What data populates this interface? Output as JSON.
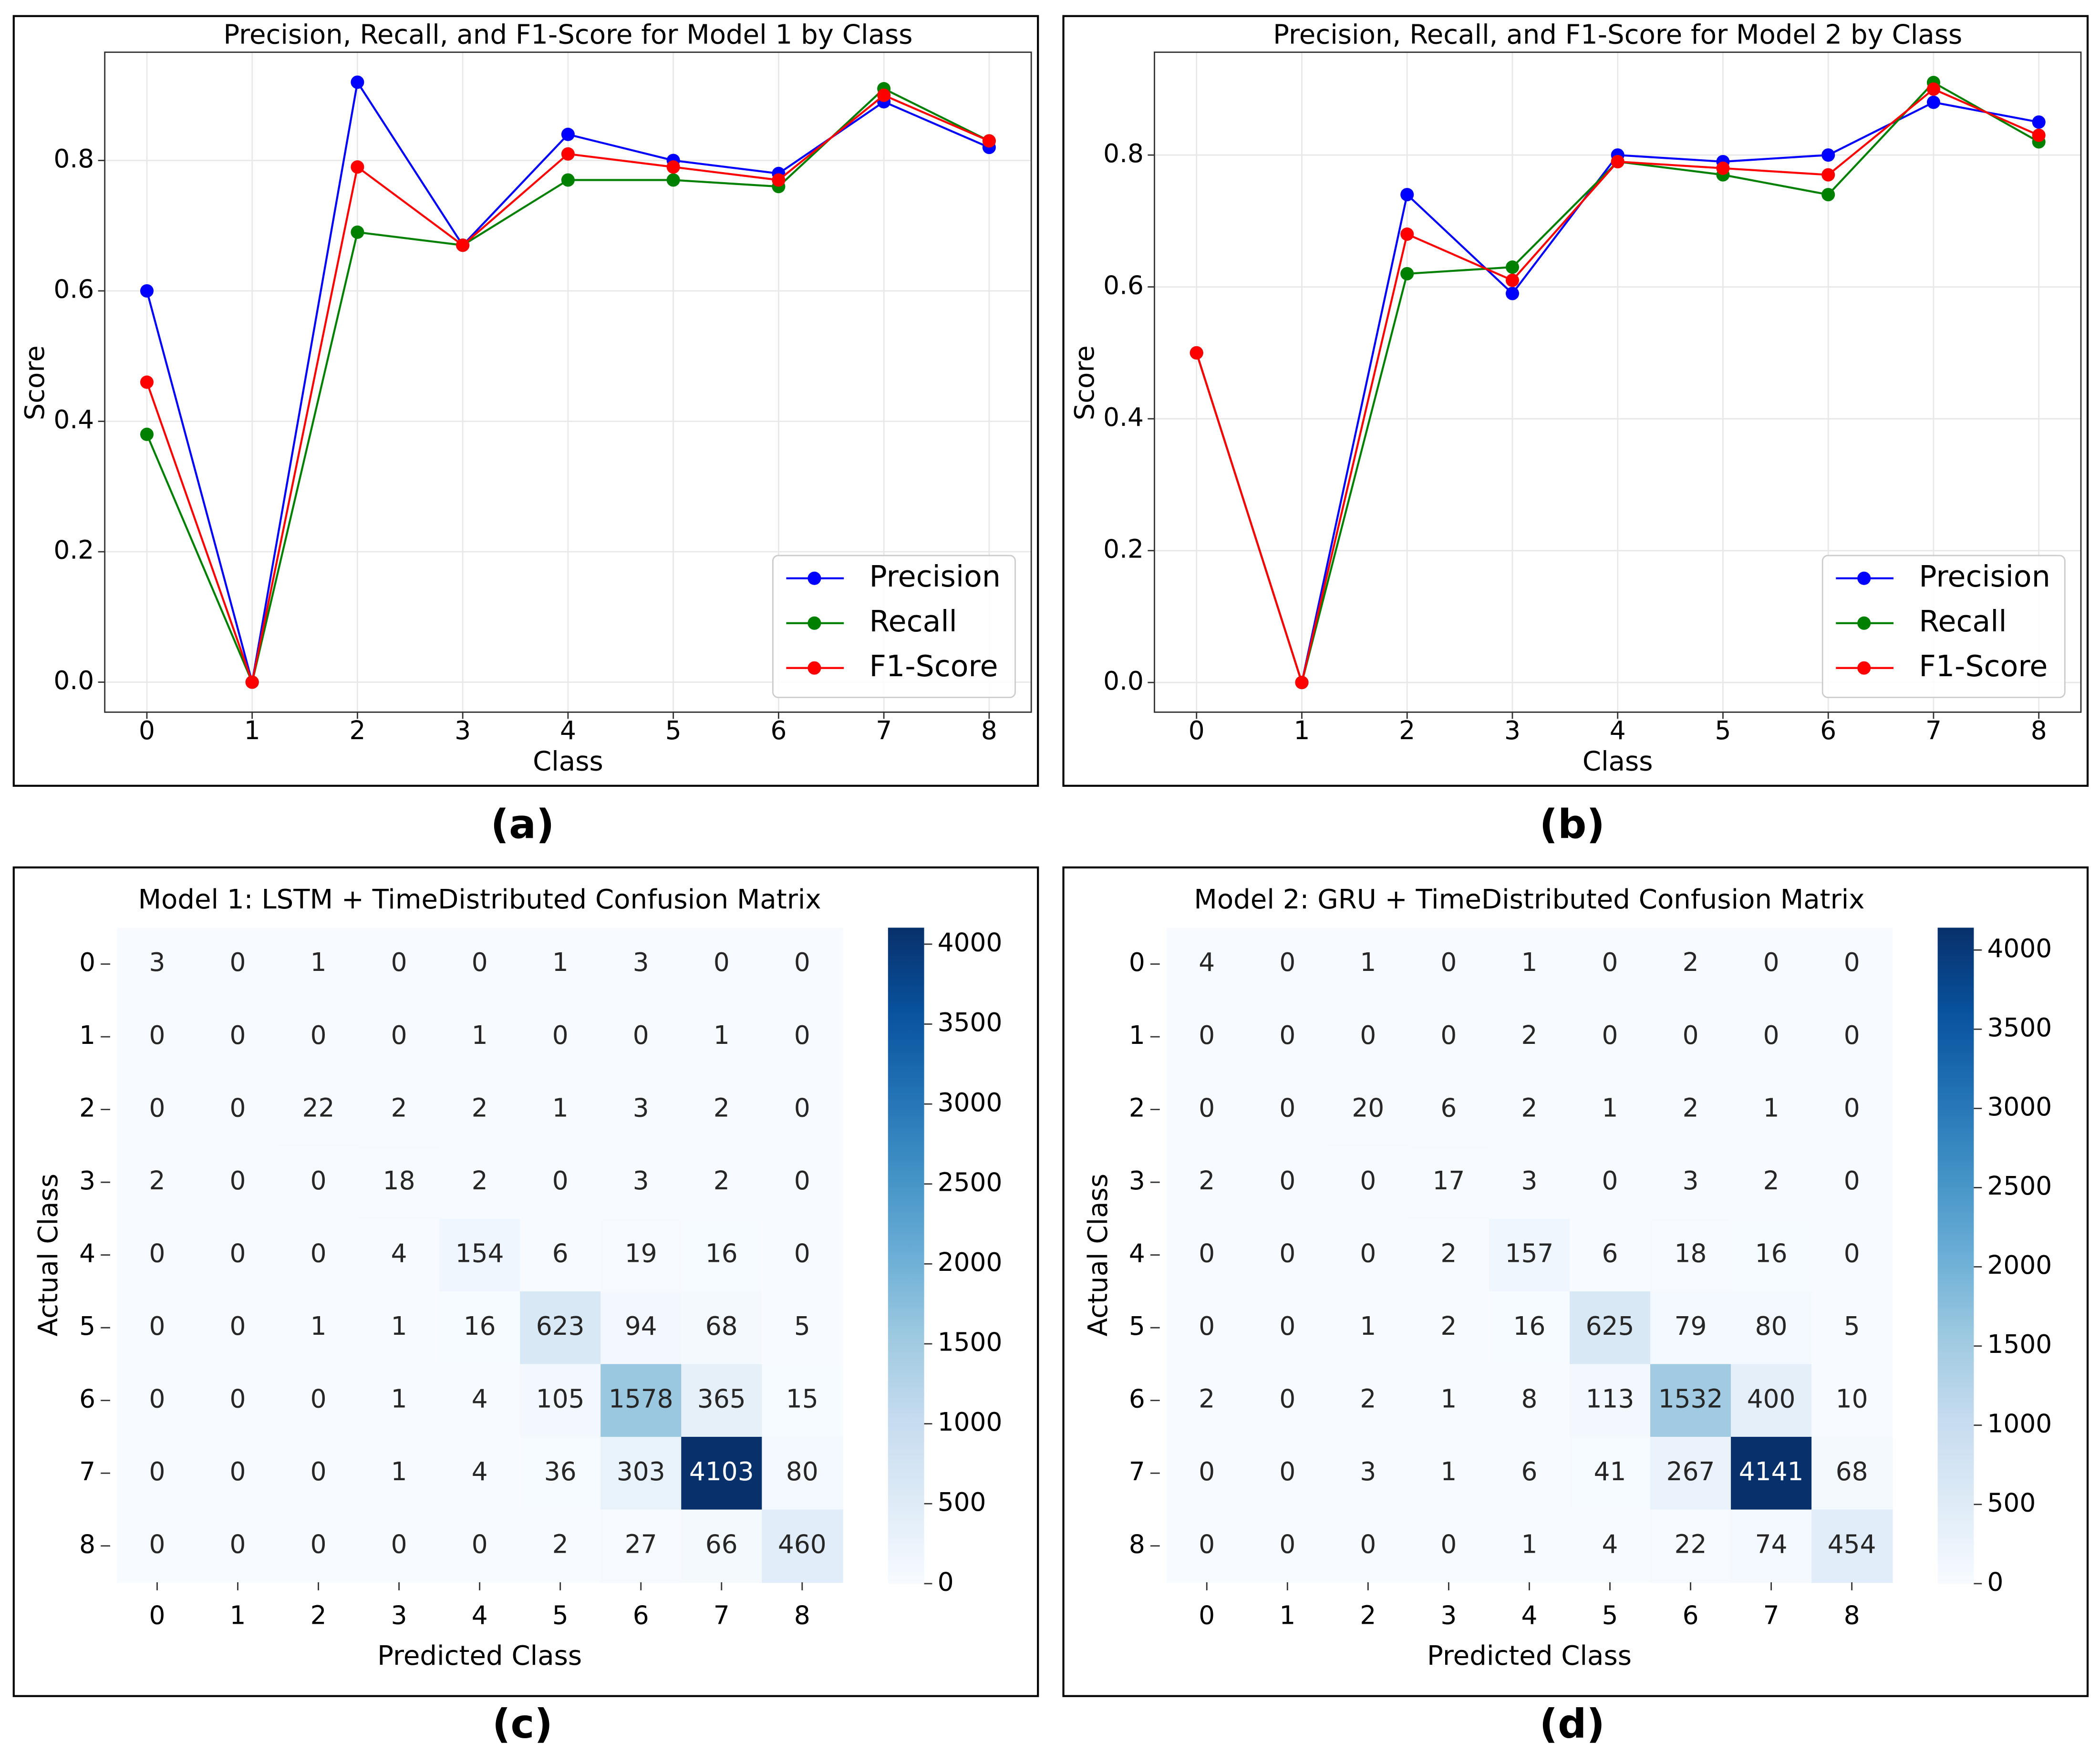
{
  "chart_data": [
    {
      "type": "line",
      "title": "Precision, Recall, and F1-Score for Model 1 by Class",
      "label": "(a)",
      "x_label": "Class",
      "y_label": "Score",
      "x": [
        0,
        1,
        2,
        3,
        4,
        5,
        6,
        7,
        8
      ],
      "xlim": [
        -0.4,
        8.4
      ],
      "xticks": [
        0,
        1,
        2,
        3,
        4,
        5,
        6,
        7,
        8
      ],
      "ylim": [
        -0.046,
        0.966
      ],
      "yticks": [
        {
          "value": 0,
          "label": "0.0"
        },
        0.2,
        0.4,
        0.6,
        0.8
      ],
      "grid": true,
      "legend": "lower right",
      "series": [
        {
          "name": "Precision",
          "color": "#0000ff",
          "values": [
            0.6,
            0,
            0.92,
            0.67,
            0.84,
            0.8,
            0.78,
            0.89,
            0.82
          ]
        },
        {
          "name": "Recall",
          "color": "#008000",
          "values": [
            0.38,
            0,
            0.69,
            0.67,
            0.77,
            0.77,
            0.76,
            0.91,
            0.83
          ]
        },
        {
          "name": "F1-Score",
          "color": "#ff0000",
          "values": [
            0.46,
            0,
            0.79,
            0.67,
            0.81,
            0.79,
            0.77,
            0.9,
            0.83
          ]
        }
      ]
    },
    {
      "type": "line",
      "title": "Precision, Recall, and F1-Score for Model 2 by Class",
      "label": "(b)",
      "x_label": "Class",
      "y_label": "Score",
      "x": [
        0,
        1,
        2,
        3,
        4,
        5,
        6,
        7,
        8
      ],
      "xlim": [
        -0.4,
        8.4
      ],
      "xticks": [
        0,
        1,
        2,
        3,
        4,
        5,
        6,
        7,
        8
      ],
      "ylim": [
        -0.045,
        0.956
      ],
      "yticks": [
        {
          "value": 0,
          "label": "0.0"
        },
        0.2,
        0.4,
        0.6,
        0.8
      ],
      "grid": true,
      "legend": "lower right",
      "series": [
        {
          "name": "Precision",
          "color": "#0000ff",
          "values": [
            0.5,
            0,
            0.74,
            0.59,
            0.8,
            0.79,
            0.8,
            0.88,
            0.85
          ]
        },
        {
          "name": "Recall",
          "color": "#008000",
          "values": [
            0.5,
            0,
            0.62,
            0.63,
            0.79,
            0.77,
            0.74,
            0.91,
            0.82
          ]
        },
        {
          "name": "F1-Score",
          "color": "#ff0000",
          "values": [
            0.5,
            0,
            0.68,
            0.61,
            0.79,
            0.78,
            0.77,
            0.9,
            0.83
          ]
        }
      ]
    },
    {
      "type": "heatmap",
      "title": "Model 1: LSTM + TimeDistributed Confusion Matrix",
      "label": "(c)",
      "x_label": "Predicted Class",
      "y_label": "Actual Class",
      "categories": [
        0,
        1,
        2,
        3,
        4,
        5,
        6,
        7,
        8
      ],
      "colormap": "Blues",
      "colorbar_lim": [
        0,
        4103
      ],
      "colorbar_ticks": [
        0,
        500,
        1000,
        1500,
        2000,
        2500,
        3000,
        3500,
        4000
      ],
      "values": [
        [
          3,
          0,
          1,
          0,
          0,
          1,
          3,
          0,
          0
        ],
        [
          0,
          0,
          0,
          0,
          1,
          0,
          0,
          1,
          0
        ],
        [
          0,
          0,
          22,
          2,
          2,
          1,
          3,
          2,
          0
        ],
        [
          2,
          0,
          0,
          18,
          2,
          0,
          3,
          2,
          0
        ],
        [
          0,
          0,
          0,
          4,
          154,
          6,
          19,
          16,
          0
        ],
        [
          0,
          0,
          1,
          1,
          16,
          623,
          94,
          68,
          5
        ],
        [
          0,
          0,
          0,
          1,
          4,
          105,
          1578,
          365,
          15
        ],
        [
          0,
          0,
          0,
          1,
          4,
          36,
          303,
          4103,
          80
        ],
        [
          0,
          0,
          0,
          0,
          0,
          2,
          27,
          66,
          460
        ]
      ]
    },
    {
      "type": "heatmap",
      "title": "Model 2: GRU + TimeDistributed Confusion Matrix",
      "label": "(d)",
      "x_label": "Predicted Class",
      "y_label": "Actual Class",
      "categories": [
        0,
        1,
        2,
        3,
        4,
        5,
        6,
        7,
        8
      ],
      "colormap": "Blues",
      "colorbar_lim": [
        0,
        4141
      ],
      "colorbar_ticks": [
        0,
        500,
        1000,
        1500,
        2000,
        2500,
        3000,
        3500,
        4000
      ],
      "values": [
        [
          4,
          0,
          1,
          0,
          1,
          0,
          2,
          0,
          0
        ],
        [
          0,
          0,
          0,
          0,
          2,
          0,
          0,
          0,
          0
        ],
        [
          0,
          0,
          20,
          6,
          2,
          1,
          2,
          1,
          0
        ],
        [
          2,
          0,
          0,
          17,
          3,
          0,
          3,
          2,
          0
        ],
        [
          0,
          0,
          0,
          2,
          157,
          6,
          18,
          16,
          0
        ],
        [
          0,
          0,
          1,
          2,
          16,
          625,
          79,
          80,
          5
        ],
        [
          2,
          0,
          2,
          1,
          8,
          113,
          1532,
          400,
          10
        ],
        [
          0,
          0,
          3,
          1,
          6,
          41,
          267,
          4141,
          68
        ],
        [
          0,
          0,
          0,
          0,
          1,
          4,
          22,
          74,
          454
        ]
      ]
    }
  ]
}
